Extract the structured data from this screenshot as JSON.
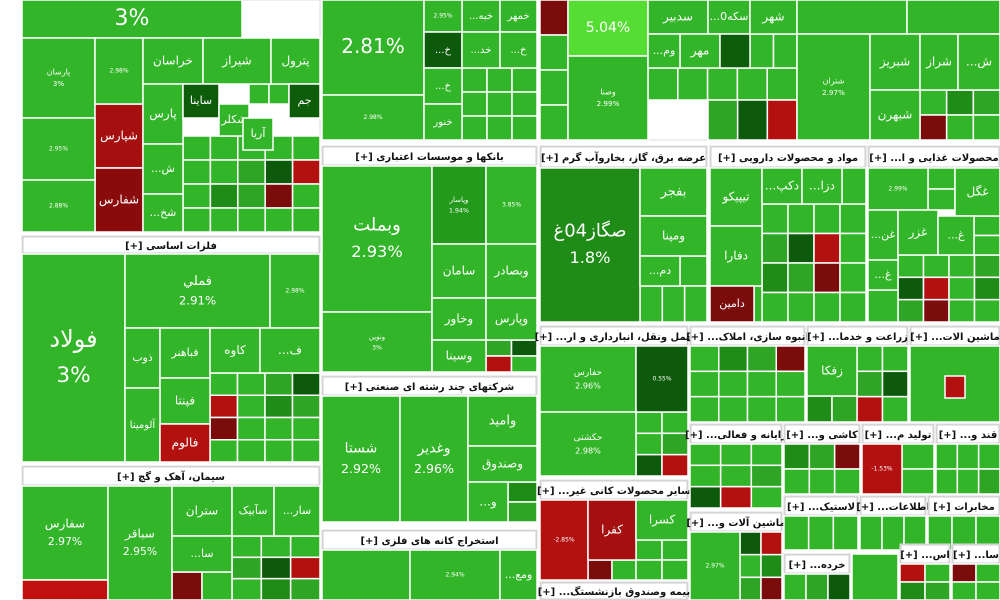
{
  "tile_color": "#33b529",
  "header_color": "#ffffff",
  "sectors": [
    {
      "tiles": [
        {
          "value": "3%"
        },
        {
          "label": "پارسان",
          "value": "3%"
        },
        {
          "label": "شپارس",
          "color": "#a50f0f"
        },
        {
          "label": "شفارس",
          "color": "#8a0b0b"
        },
        {
          "value": "2.98%"
        },
        {
          "value": "2.95%"
        },
        {
          "value": "2.88%"
        },
        {
          "label": "خراسان"
        },
        {
          "label": "شیراز"
        },
        {
          "label": "پترول"
        },
        {
          "label": "پارس"
        },
        {
          "label": "ساینا",
          "color": "#0d5c0a"
        },
        {
          "label": "شکلر"
        },
        {
          "label": "جم",
          "color": "#0d5c0a"
        },
        {
          "label": "آریا"
        },
        {
          "label": "ش..."
        },
        {
          "label": "شخ..."
        }
      ]
    },
    {
      "name": "فلزات اساسی [+]",
      "tiles": [
        {
          "label": "فولاد",
          "value": "3%"
        },
        {
          "label": "فملي",
          "value": "2.91%"
        },
        {
          "value": "2.98%"
        },
        {
          "label": "ذوب"
        },
        {
          "label": "فباهنر"
        },
        {
          "label": "کاوه"
        },
        {
          "label": "ف..."
        },
        {
          "label": "فپنتا"
        },
        {
          "label": "آلومینا"
        },
        {
          "label": "فالوم",
          "color": "#b31010"
        }
      ]
    },
    {
      "name": "سیمان، آهک و گچ [+]",
      "tiles": [
        {
          "label": "سفارس",
          "value": "2.97%"
        },
        {
          "color": "#c01010"
        },
        {
          "label": "سباقر",
          "value": "2.95%"
        },
        {
          "label": "ستران"
        },
        {
          "label": "سآبیک"
        },
        {
          "label": "سار..."
        },
        {
          "label": "سا..."
        }
      ]
    },
    {
      "tiles": [
        {
          "value": "2.81%"
        },
        {
          "value": "2.98%"
        },
        {
          "label": "خبه..."
        },
        {
          "label": "خمهر"
        },
        {
          "value": "2.95%"
        },
        {
          "label": "خ...",
          "color": "#0e5a0c"
        },
        {
          "label": "خد..."
        },
        {
          "label": "خ..."
        },
        {
          "label": "خ..."
        },
        {
          "label": "خنور"
        }
      ]
    },
    {
      "name": "بانکها و موسسات اعتباری [+]",
      "tiles": [
        {
          "label": "وبملت",
          "value": "2.93%"
        },
        {
          "label": "ونوین",
          "value": "3%"
        },
        {
          "label": "وپاسار",
          "value": "1.94%",
          "color": "#249a1c"
        },
        {
          "value": "3.85%"
        },
        {
          "label": "سامان"
        },
        {
          "label": "وبصادر"
        },
        {
          "label": "وخاور"
        },
        {
          "label": "وپارس"
        },
        {
          "label": "وسینا"
        }
      ]
    },
    {
      "name": "شرکتهای چند رشته ای صنعتی [+]",
      "tiles": [
        {
          "label": "شستا",
          "value": "2.92%"
        },
        {
          "label": "وغدیر",
          "value": "2.96%"
        },
        {
          "label": "وامید"
        },
        {
          "label": "وصندوق"
        },
        {
          "label": "و..."
        }
      ]
    },
    {
      "name": "استخراج کانه های فلزی [+]",
      "tiles": [
        {},
        {
          "value": "2.94%"
        },
        {
          "label": "ومع..."
        }
      ]
    },
    {
      "tiles": [
        {
          "value": "5.04%",
          "color": "#55dd33"
        },
        {
          "label": "وصنا",
          "value": "2.99%"
        },
        {
          "label": "سدبیر"
        },
        {
          "label": "سکه0..."
        },
        {
          "label": "شهر"
        },
        {
          "label": "مهر"
        },
        {
          "label": "وم..."
        },
        {
          "color": "#0d5c0a"
        },
        {
          "label": "صبا"
        }
      ]
    },
    {
      "tiles": [
        {},
        {},
        {
          "label": "شتران",
          "value": "2.97%"
        },
        {
          "label": "شبریز"
        },
        {
          "label": "شراز"
        },
        {
          "label": "ش..."
        },
        {
          "label": "شبهرن"
        }
      ]
    },
    {
      "name": "عرضه برق، گاز، بخاروآب گرم [+]",
      "tiles": [
        {
          "label": "صگاز04غ",
          "value": "1.8%",
          "color": "#1f8c17"
        },
        {
          "label": "بفجر"
        },
        {
          "label": "ومپنا"
        },
        {
          "label": "دم..."
        }
      ]
    },
    {
      "name": "مواد و محصولات دارویی [+]",
      "tiles": [
        {
          "label": "تیپیکو"
        },
        {
          "label": "دکپ..."
        },
        {
          "label": "دزا..."
        },
        {
          "label": "دفارا"
        },
        {
          "label": "دامین",
          "color": "#7a0c0c"
        }
      ]
    },
    {
      "name": "محصولات غذایی و ا... [+]",
      "tiles": [
        {
          "value": "2.99%"
        },
        {
          "label": "غگل"
        },
        {
          "label": "غن..."
        },
        {
          "label": "غزر"
        },
        {
          "label": "غ..."
        },
        {
          "label": "غ..."
        }
      ]
    },
    {
      "name": "حمل ونقل، انبارداری و ار... [+]",
      "tiles": [
        {
          "label": "حفارس",
          "value": "2.96%"
        },
        {
          "label": "حکشتی",
          "value": "2.98%"
        },
        {
          "value": "0.55%",
          "color": "#0e5a0c"
        }
      ]
    },
    {
      "name": "انبوه سازی، املاک... [+]",
      "tiles": []
    },
    {
      "name": "زراعت و خدما... [+]",
      "tiles": [
        {
          "label": "زفکا"
        }
      ]
    },
    {
      "name": "ماشین الات... [+]",
      "tiles": [
        {
          "label": "تایرا"
        },
        {
          "color": "#b31010"
        }
      ]
    },
    {
      "name": "سایر محصولات کانی غیر... [+]",
      "tiles": [
        {
          "value": "-2.85%",
          "color": "#b31010"
        },
        {
          "label": "کفرا",
          "color": "#a50f0f"
        },
        {
          "label": "کسرا"
        }
      ]
    },
    {
      "name": "بیمه وصندوق بازنشستگ... [+]",
      "tiles": []
    },
    {
      "name": "رایانه و فعالی... [+]",
      "tiles": []
    },
    {
      "name": "کاشی و... [+]",
      "tiles": []
    },
    {
      "name": "تولید م... [+]",
      "tiles": [
        {
          "value": "-1.53%",
          "color": "#b31010"
        }
      ]
    },
    {
      "name": "قند و... [+]",
      "tiles": []
    },
    {
      "name": "ماشین آلات و... [+]",
      "tiles": [
        {
          "value": "2.97%"
        }
      ]
    },
    {
      "name": "لاستیک... [+]",
      "tiles": []
    },
    {
      "name": "اطلاعات... [+]",
      "tiles": []
    },
    {
      "name": "مخابرات [+]",
      "tiles": []
    },
    {
      "name": "خرده... [+]",
      "tiles": []
    },
    {
      "name": "اس... [+]",
      "tiles": []
    },
    {
      "name": "سا... [+]",
      "tiles": []
    }
  ]
}
